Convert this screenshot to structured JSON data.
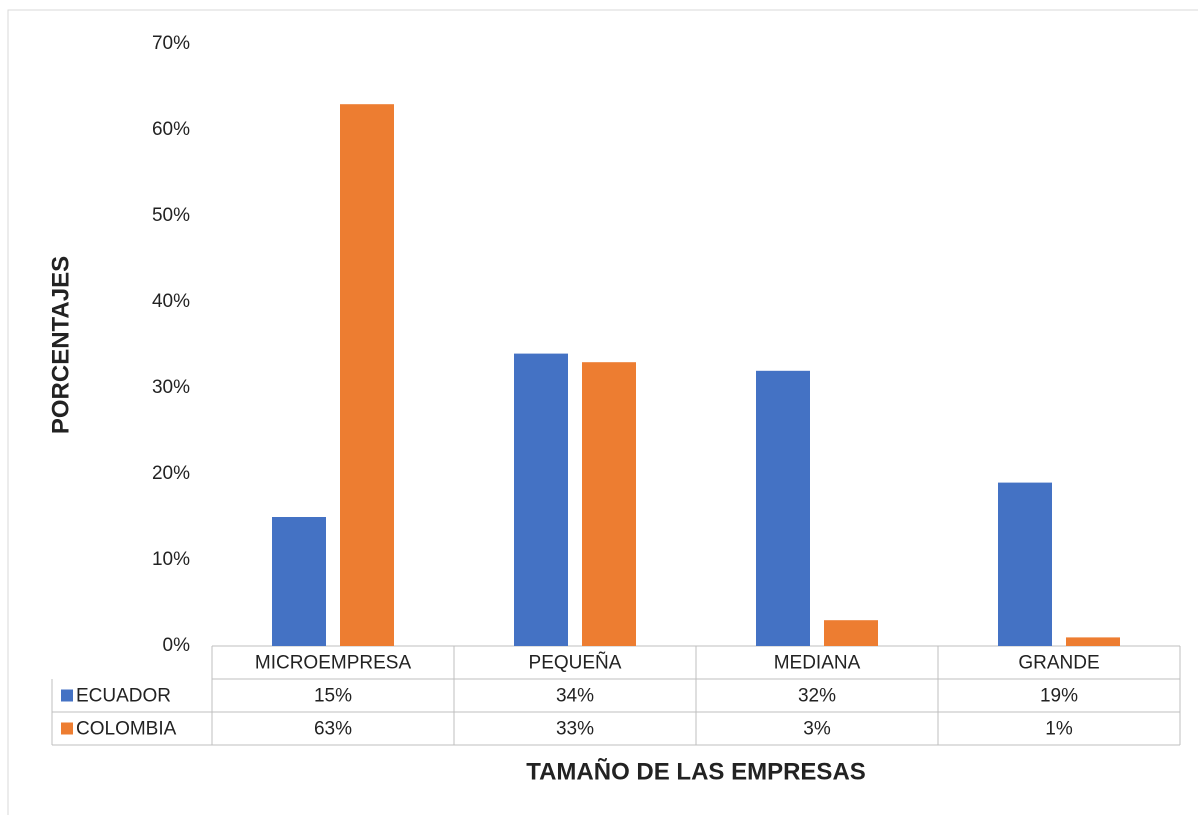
{
  "chart_data": {
    "type": "bar",
    "xlabel": "TAMAÑO DE LAS EMPRESAS",
    "ylabel": "PORCENTAJES",
    "categories": [
      "MICROEMPRESA",
      "PEQUEÑA",
      "MEDIANA",
      "GRANDE"
    ],
    "series": [
      {
        "name": "ECUADOR",
        "color": "#4472c4",
        "values": [
          15,
          34,
          32,
          19
        ],
        "value_labels": [
          "15%",
          "34%",
          "32%",
          "19%"
        ]
      },
      {
        "name": "COLOMBIA",
        "color": "#ed7d31",
        "values": [
          63,
          33,
          3,
          1
        ],
        "value_labels": [
          "63%",
          "33%",
          "3%",
          "1%"
        ]
      }
    ],
    "ylim": [
      0,
      70
    ],
    "yticks": [
      {
        "value": 0,
        "label": "0%"
      },
      {
        "value": 10,
        "label": "10%"
      },
      {
        "value": 20,
        "label": "20%"
      },
      {
        "value": 30,
        "label": "30%"
      },
      {
        "value": 40,
        "label": "40%"
      },
      {
        "value": 50,
        "label": "50%"
      },
      {
        "value": 60,
        "label": "60%"
      },
      {
        "value": 70,
        "label": "70%"
      }
    ],
    "grid": false
  }
}
